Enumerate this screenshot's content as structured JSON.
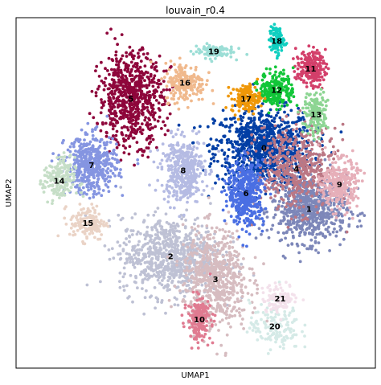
{
  "chart_data": {
    "type": "scatter",
    "title": "louvain_r0.4",
    "xlabel": "UMAP1",
    "ylabel": "UMAP2",
    "grid": false,
    "legend": "labels on data",
    "xlim": [
      0,
      100
    ],
    "ylim": [
      0,
      100
    ],
    "clusters": [
      {
        "label": "0",
        "color": "#023fa5",
        "x": 69.0,
        "y": 63.0,
        "sx": 6.8,
        "sy": 5.5,
        "n": 900
      },
      {
        "label": "1",
        "color": "#7d87b9",
        "x": 81.5,
        "y": 45.5,
        "sx": 5.2,
        "sy": 4.8,
        "n": 700
      },
      {
        "label": "2",
        "color": "#bec1d4",
        "x": 43.0,
        "y": 32.0,
        "sx": 7.0,
        "sy": 5.5,
        "n": 800
      },
      {
        "label": "3",
        "color": "#d6bcc0",
        "x": 55.5,
        "y": 25.5,
        "sx": 4.5,
        "sy": 7.0,
        "n": 650
      },
      {
        "label": "4",
        "color": "#bb7784",
        "x": 78.0,
        "y": 57.0,
        "sx": 5.5,
        "sy": 6.0,
        "n": 500
      },
      {
        "label": "5",
        "color": "#8e063b",
        "x": 32.0,
        "y": 77.0,
        "sx": 4.5,
        "sy": 6.5,
        "n": 700
      },
      {
        "label": "6",
        "color": "#4a6fe3",
        "x": 64.0,
        "y": 50.0,
        "sx": 2.5,
        "sy": 4.5,
        "n": 450
      },
      {
        "label": "7",
        "color": "#8595e1",
        "x": 21.0,
        "y": 58.0,
        "sx": 3.6,
        "sy": 4.2,
        "n": 450
      },
      {
        "label": "8",
        "color": "#b5bbe3",
        "x": 46.5,
        "y": 56.5,
        "sx": 3.0,
        "sy": 4.5,
        "n": 400
      },
      {
        "label": "9",
        "color": "#e6afb9",
        "x": 90.0,
        "y": 52.5,
        "sx": 2.5,
        "sy": 3.5,
        "n": 300
      },
      {
        "label": "10",
        "color": "#e07b91",
        "x": 51.0,
        "y": 14.0,
        "sx": 1.6,
        "sy": 3.0,
        "n": 200
      },
      {
        "label": "11",
        "color": "#d33f6a",
        "x": 82.0,
        "y": 85.5,
        "sx": 2.0,
        "sy": 2.5,
        "n": 200
      },
      {
        "label": "12",
        "color": "#11c638",
        "x": 72.5,
        "y": 79.5,
        "sx": 2.4,
        "sy": 2.6,
        "n": 220
      },
      {
        "label": "13",
        "color": "#8dd593",
        "x": 83.5,
        "y": 72.5,
        "sx": 1.7,
        "sy": 3.0,
        "n": 150
      },
      {
        "label": "14",
        "color": "#c6dec7",
        "x": 12.0,
        "y": 53.5,
        "sx": 2.2,
        "sy": 3.3,
        "n": 180
      },
      {
        "label": "15",
        "color": "#ead3c6",
        "x": 20.0,
        "y": 41.5,
        "sx": 2.5,
        "sy": 2.5,
        "n": 150
      },
      {
        "label": "16",
        "color": "#f0b98d",
        "x": 47.0,
        "y": 81.5,
        "sx": 2.8,
        "sy": 2.8,
        "n": 200
      },
      {
        "label": "17",
        "color": "#ef9708",
        "x": 64.0,
        "y": 77.0,
        "sx": 2.0,
        "sy": 2.0,
        "n": 150
      },
      {
        "label": "18",
        "color": "#0fcfc0",
        "x": 72.5,
        "y": 93.5,
        "sx": 1.0,
        "sy": 2.0,
        "n": 100
      },
      {
        "label": "19",
        "color": "#9cded6",
        "x": 55.0,
        "y": 90.5,
        "sx": 2.8,
        "sy": 1.0,
        "n": 100
      },
      {
        "label": "20",
        "color": "#d5eae7",
        "x": 72.0,
        "y": 12.0,
        "sx": 3.5,
        "sy": 3.5,
        "n": 150
      },
      {
        "label": "21",
        "color": "#f3e1eb",
        "x": 73.5,
        "y": 20.0,
        "sx": 2.5,
        "sy": 2.0,
        "n": 100
      }
    ]
  }
}
